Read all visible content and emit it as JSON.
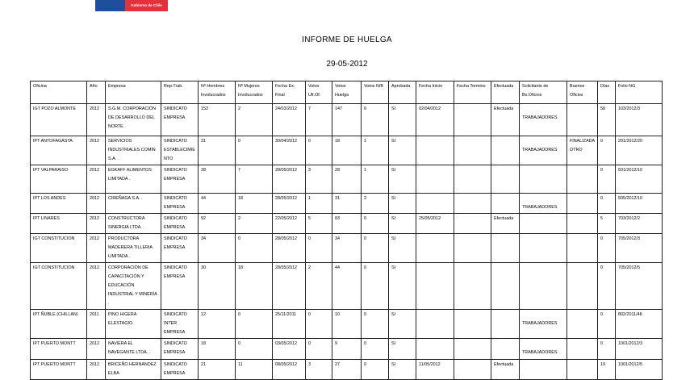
{
  "logo": {
    "text": "Gobierno de Chile",
    "colors": {
      "blue": "#1f4e9c",
      "red": "#e2323b"
    }
  },
  "title": "INFORME DE HUELGA",
  "date": "29-05-2012",
  "columns": [
    "Oficina",
    "Año",
    "Empresa",
    "Rep.Trab.",
    "Nº Hombres Involucrados",
    "Nº Mujeres Involucrados",
    "Fecha Ex. Final",
    "Votos Ult.Of.",
    "Votos Huelga",
    "Votos N/B",
    "Aprobada",
    "Fecha Inicio",
    "Fecha Termino",
    "Efectuada",
    "Solicitante de Bs.Oficios",
    "Buenos Oficios",
    "Días",
    "Folio NG"
  ],
  "rows": [
    [
      "IGT POZO ALMONTE",
      "2012",
      "S.G.M. CORPORACIÓN DE DESARROLLO DEL NORTE .",
      "SINDICATO EMPRESA",
      "152",
      "2",
      "24/03/2012",
      "7",
      "147",
      "0",
      "SI",
      "02/04/2012",
      "",
      "Efectuada",
      "TRABAJADORES",
      "",
      "58",
      "103/2012/3"
    ],
    [
      "IPT ANTOFAGASTA",
      "2012",
      "SERVICIOS INDUSTRIALES COMIN S.A. .",
      "SINDICATO ESTABLECIMIENTO",
      "31",
      "0",
      "30/04/2012",
      "0",
      "18",
      "1",
      "SI",
      "",
      "",
      "",
      "TRABAJADORES",
      "FINALIZADA OTRO",
      "0",
      "201/2012/20"
    ],
    [
      "IPT VALPARAISO",
      "2012",
      "EGKAFF ALIMENTOS LIMITADA .",
      "SINDICATO EMPRESA",
      "28",
      "7",
      "28/05/2012",
      "3",
      "28",
      "1",
      "SI",
      "",
      "",
      "",
      "",
      "",
      "0",
      "501/2012/10"
    ],
    [
      "IPT LOS ANDES",
      "2012",
      "CIREÑAGA S.A. .",
      "SINDICATO EMPRESA",
      "44",
      "18",
      "28/05/2012",
      "1",
      "31",
      "2",
      "SI",
      "",
      "",
      "",
      "TRABAJADORES",
      "",
      "0",
      "505/2012/10"
    ],
    [
      "IPT LINARES",
      "2012",
      "CONSTRUCTORA SINERGIA LTDA. .",
      "SINDICATO EMPRESA",
      "92",
      "2",
      "22/05/2012",
      "5",
      "83",
      "0",
      "SI",
      "25/05/2012",
      "",
      "Efectuada",
      "",
      "",
      "5",
      "703/2012/2"
    ],
    [
      "IGT CONSTITUCION",
      "2012",
      "PRODUCTORA MADERERA TILLERIA LIMITADA .",
      "SINDICATO EMPRESA",
      "34",
      "0",
      "28/05/2012",
      "0",
      "34",
      "0",
      "SI",
      "",
      "",
      "",
      "",
      "",
      "0",
      "705/2012/3"
    ],
    [
      "IGT CONSTITUCION",
      "2012",
      "CORPORACIÓN DE CAPACITACIÓN Y EDUCACIÓN INDUSTRIAL Y MINERÍA .",
      "SINDICATO EMPRESA",
      "30",
      "18",
      "28/05/2012",
      "2",
      "44",
      "0",
      "SI",
      "",
      "",
      "",
      "",
      "",
      "0",
      "705/2012/5"
    ],
    [
      "IPT ÑUBLE (CHILLAN)",
      "2011",
      "PINO HIGERA ELESTAGIO.",
      "SINDICATO INTER EMPRESA",
      "12",
      "0",
      "25/11/2011",
      "0",
      "10",
      "0",
      "SI",
      "",
      "",
      "",
      "TRABAJADORES",
      "",
      "0",
      "802/2011/48"
    ],
    [
      "IPT PUERTO MONTT",
      "2012",
      "NAVIERA EL NAVEGANTE LTDA. .",
      "SINDICATO EMPRESA",
      "18",
      "0",
      "03/05/2012",
      "0",
      "9",
      "0",
      "SI",
      "",
      "",
      "",
      "TRABAJADORES",
      "",
      "0",
      "1001/2012/3"
    ],
    [
      "IPT PUERTO MONTT",
      "2012",
      "BRICEÑO HERNANDEZ ELBA",
      "SINDICATO EMPRESA",
      "21",
      "11",
      "08/05/2012",
      "3",
      "27",
      "0",
      "SI",
      "11/05/2012",
      "",
      "Efectuada",
      "",
      "",
      "19",
      "1001/2012/5"
    ]
  ]
}
